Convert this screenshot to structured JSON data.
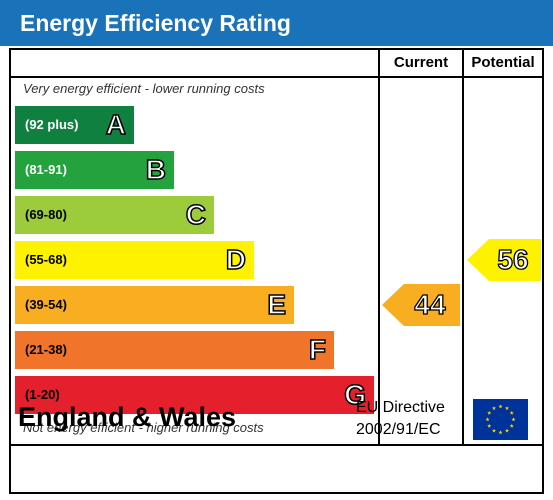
{
  "header": {
    "title": "Energy Efficiency Rating"
  },
  "columns": {
    "current": "Current",
    "potential": "Potential"
  },
  "notes": {
    "top": "Very energy efficient - lower running costs",
    "bottom": "Not energy efficient - higher running costs"
  },
  "bands": [
    {
      "range": "(92 plus)",
      "letter": "A",
      "color": "#0f8040",
      "text_color": "#ffffff"
    },
    {
      "range": "(81-91)",
      "letter": "B",
      "color": "#23a23e",
      "text_color": "#ffffff"
    },
    {
      "range": "(69-80)",
      "letter": "C",
      "color": "#9ccc3c",
      "text_color": "#000000"
    },
    {
      "range": "(55-68)",
      "letter": "D",
      "color": "#fff200",
      "text_color": "#000000"
    },
    {
      "range": "(39-54)",
      "letter": "E",
      "color": "#f9ad20",
      "text_color": "#000000"
    },
    {
      "range": "(21-38)",
      "letter": "F",
      "color": "#f0742a",
      "text_color": "#000000"
    },
    {
      "range": "(1-20)",
      "letter": "G",
      "color": "#e3202b",
      "text_color": "#000000"
    }
  ],
  "ratings": {
    "current": {
      "value": "44",
      "band": "E",
      "color": "#f9ad20"
    },
    "potential": {
      "value": "56",
      "band": "D",
      "color": "#fff200"
    }
  },
  "footer": {
    "region": "England & Wales",
    "directive_line1": "EU Directive",
    "directive_line2": "2002/91/EC"
  },
  "colors": {
    "header_bg": "#1a72b8",
    "flag_bg": "#003399",
    "flag_star": "#ffcc00"
  }
}
